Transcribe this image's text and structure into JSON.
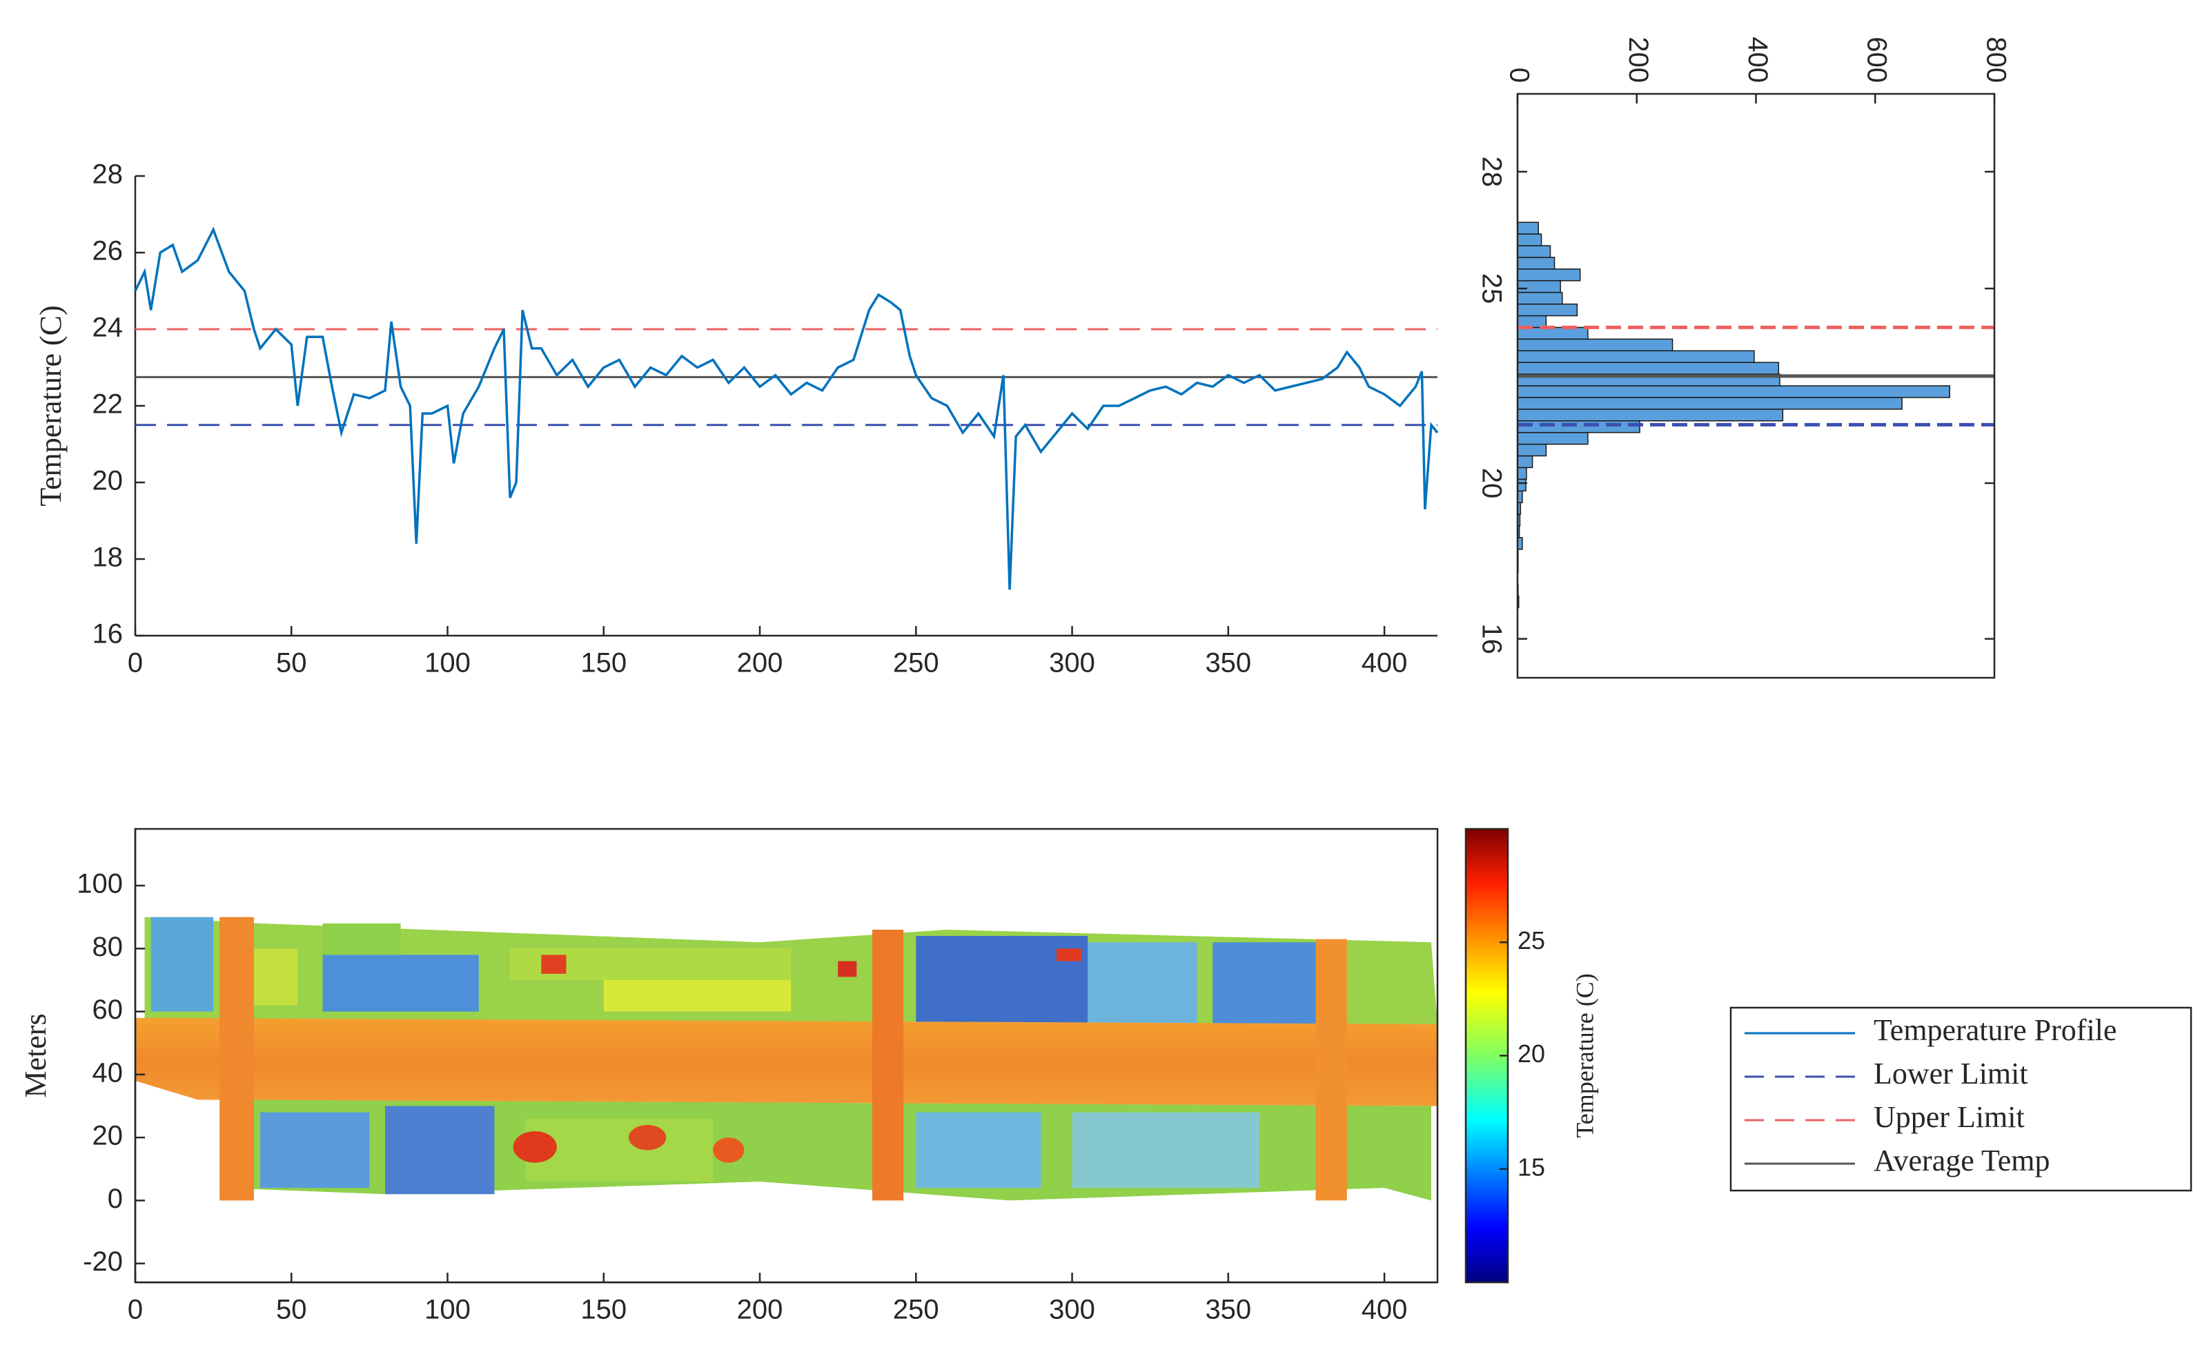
{
  "chart_data": [
    {
      "type": "line",
      "ylabel": "Temperature (C)",
      "xlim": [
        0,
        417
      ],
      "xticks": [
        0,
        50,
        100,
        150,
        200,
        250,
        300,
        350,
        400
      ],
      "ylim": [
        16,
        28
      ],
      "yticks": [
        16,
        18,
        20,
        22,
        24,
        26,
        28
      ],
      "series": [
        {
          "name": "Temperature Profile",
          "color": "#0072bd",
          "x": [
            0,
            3,
            5,
            8,
            12,
            15,
            20,
            25,
            30,
            35,
            38,
            40,
            45,
            50,
            52,
            55,
            60,
            63,
            66,
            70,
            75,
            80,
            82,
            85,
            88,
            90,
            92,
            95,
            100,
            102,
            105,
            110,
            115,
            118,
            120,
            122,
            124,
            127,
            130,
            135,
            140,
            145,
            150,
            155,
            160,
            165,
            170,
            175,
            180,
            185,
            190,
            195,
            200,
            205,
            210,
            215,
            220,
            225,
            230,
            235,
            238,
            242,
            245,
            248,
            250,
            255,
            260,
            265,
            270,
            275,
            278,
            280,
            282,
            285,
            290,
            295,
            300,
            305,
            310,
            315,
            320,
            325,
            330,
            335,
            340,
            345,
            350,
            355,
            360,
            365,
            370,
            375,
            380,
            385,
            388,
            392,
            395,
            400,
            405,
            410,
            412,
            413,
            415,
            417
          ],
          "values": [
            25.0,
            25.5,
            24.5,
            26.0,
            26.2,
            25.5,
            25.8,
            26.6,
            25.5,
            25.0,
            24.0,
            23.5,
            24.0,
            23.6,
            22.0,
            23.8,
            23.8,
            22.5,
            21.3,
            22.3,
            22.2,
            22.4,
            24.2,
            22.5,
            22.0,
            18.4,
            21.8,
            21.8,
            22.0,
            20.5,
            21.8,
            22.5,
            23.5,
            24.0,
            19.6,
            20.0,
            24.5,
            23.5,
            23.5,
            22.8,
            23.2,
            22.5,
            23.0,
            23.2,
            22.5,
            23.0,
            22.8,
            23.3,
            23.0,
            23.2,
            22.6,
            23.0,
            22.5,
            22.8,
            22.3,
            22.6,
            22.4,
            23.0,
            23.2,
            24.5,
            24.9,
            24.7,
            24.5,
            23.3,
            22.8,
            22.2,
            22.0,
            21.3,
            21.8,
            21.2,
            22.8,
            17.2,
            21.2,
            21.5,
            20.8,
            21.3,
            21.8,
            21.4,
            22.0,
            22.0,
            22.2,
            22.4,
            22.5,
            22.3,
            22.6,
            22.5,
            22.8,
            22.6,
            22.8,
            22.4,
            22.5,
            22.6,
            22.7,
            23.0,
            23.4,
            23.0,
            22.5,
            22.3,
            22.0,
            22.5,
            22.9,
            19.3,
            21.5,
            21.3
          ]
        }
      ],
      "reference_lines": [
        {
          "name": "Lower Limit",
          "color": "#3b4fb0",
          "value": 21.5,
          "style": "dashed"
        },
        {
          "name": "Upper Limit",
          "color": "#f06060",
          "value": 24.0,
          "style": "dashed"
        },
        {
          "name": "Average Temp",
          "color": "#555555",
          "value": 22.75,
          "style": "solid"
        }
      ]
    },
    {
      "type": "histogram",
      "orientation": "horizontal",
      "color": "#5a9fdc",
      "bins": [
        16.8,
        17.1,
        17.4,
        17.7,
        18.0,
        18.3,
        18.6,
        18.9,
        19.2,
        19.5,
        19.8,
        20.1,
        20.4,
        20.7,
        21.0,
        21.3,
        21.6,
        21.9,
        22.2,
        22.5,
        22.8,
        23.1,
        23.4,
        23.7,
        24.0,
        24.3,
        24.6,
        24.9,
        25.2,
        25.5,
        25.8,
        26.1,
        26.4,
        26.7
      ],
      "counts": [
        2,
        1,
        0,
        1,
        1,
        8,
        3,
        4,
        5,
        8,
        14,
        15,
        25,
        48,
        118,
        205,
        445,
        645,
        725,
        440,
        438,
        397,
        260,
        118,
        48,
        100,
        75,
        72,
        105,
        62,
        55,
        40,
        35
      ],
      "xlim": [
        0,
        800
      ],
      "xticks": [
        0,
        200,
        400,
        600,
        800
      ],
      "ylim": [
        15,
        30
      ],
      "yticks": [
        16,
        20,
        25,
        28
      ]
    },
    {
      "type": "image",
      "ylabel": "Meters",
      "xlim": [
        0,
        417
      ],
      "xticks": [
        0,
        50,
        100,
        150,
        200,
        250,
        300,
        350,
        400
      ],
      "ylim": [
        -26,
        118
      ],
      "yticks": [
        -20,
        0,
        20,
        40,
        60,
        80,
        100
      ],
      "colorbar": {
        "label": "Temperature (C)",
        "clim": [
          10,
          30
        ],
        "ticks": [
          15,
          20,
          25
        ]
      }
    }
  ]
}
